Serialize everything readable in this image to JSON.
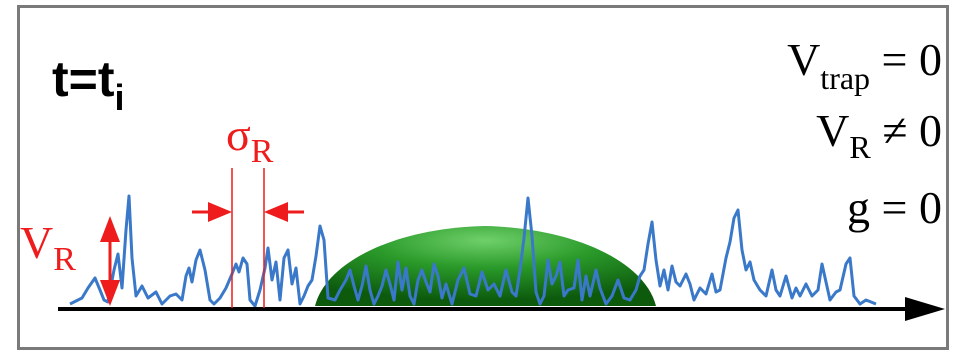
{
  "time_label": {
    "base": "t=t",
    "subscript": "i"
  },
  "equations": [
    {
      "symbol": "V",
      "subscript": "trap",
      "operator": "=",
      "value": "0"
    },
    {
      "symbol": "V",
      "subscript": "R",
      "operator": "≠",
      "value": "0"
    },
    {
      "symbol": "g",
      "subscript": "",
      "operator": "=",
      "value": "0"
    }
  ],
  "annotations": {
    "amplitude": {
      "symbol": "V",
      "subscript": "R"
    },
    "correlation_length": {
      "symbol": "σ",
      "subscript": "R"
    }
  },
  "colors": {
    "frame": "#7a7a7a",
    "potential_line": "#3a78c9",
    "annotation_red": "#ee1c1c",
    "axis": "#000000",
    "cloud_dark": "#0d5a0d",
    "cloud_light": "#6fd06a"
  },
  "icons": {
    "axis_arrow": "right-arrow-icon"
  }
}
